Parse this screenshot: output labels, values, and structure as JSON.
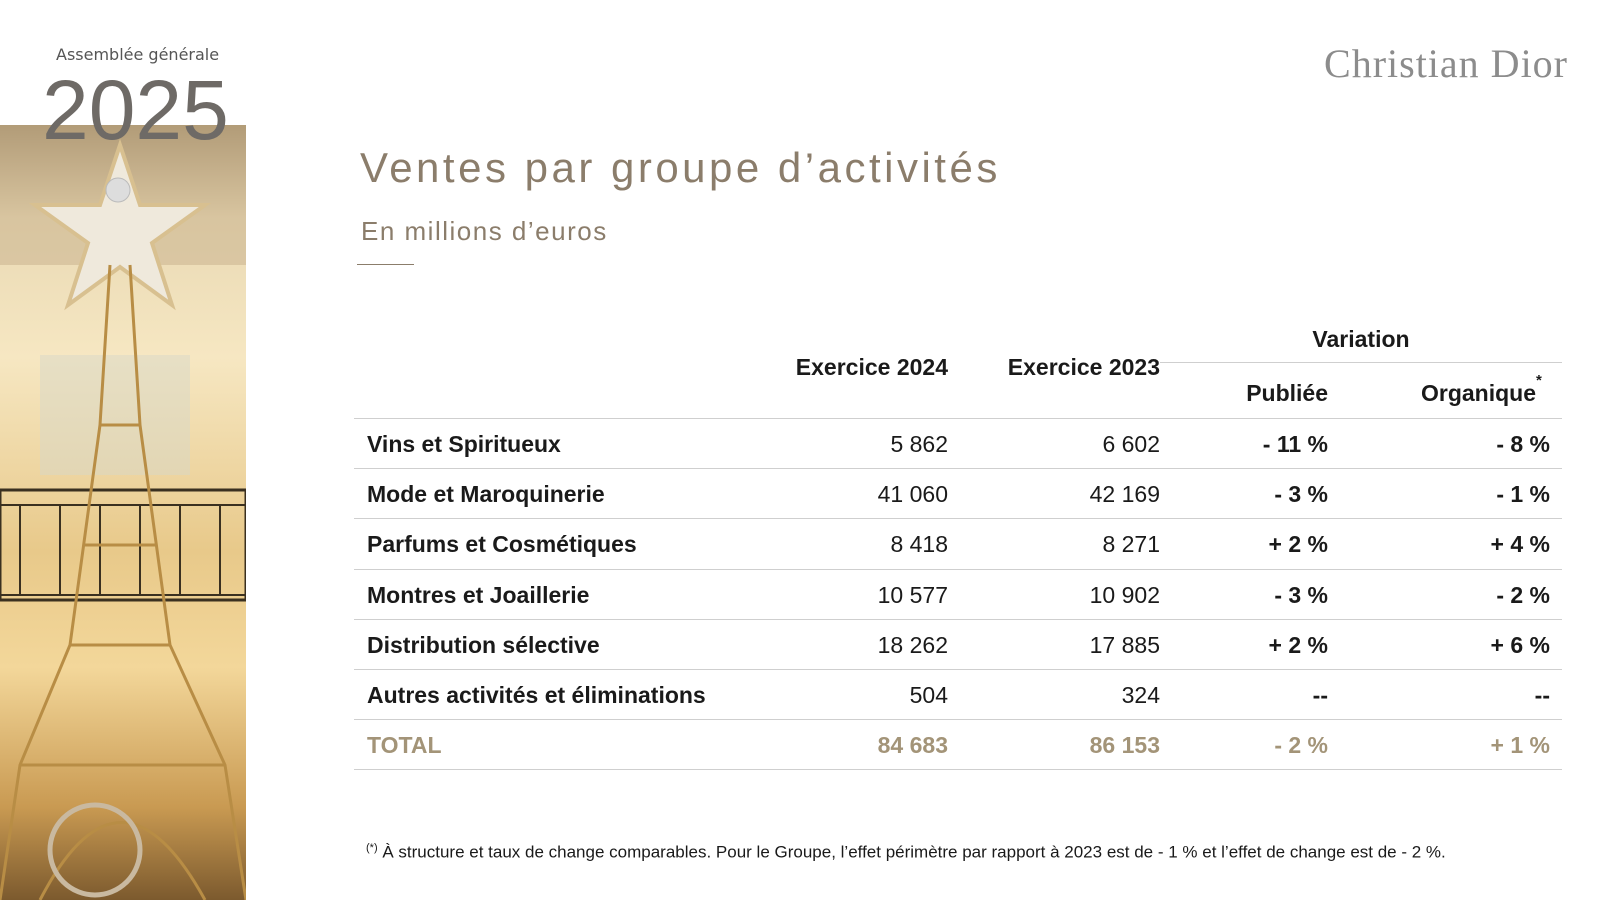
{
  "header": {
    "event": "Assemblée générale",
    "year": "2025",
    "brand": "Christian Dior"
  },
  "title": "Ventes par groupe d’activités",
  "subtitle": "En millions d’euros",
  "table": {
    "columns": [
      "Exercice 2024",
      "Exercice 2023"
    ],
    "group_header": "Variation",
    "sub_columns": [
      "Publiée",
      "Organique"
    ],
    "sub_column_marker": "*",
    "rows": [
      [
        "Vins et Spiritueux",
        "5 862",
        "6 602",
        "- 11 %",
        "- 8 %"
      ],
      [
        "Mode et Maroquinerie",
        "41 060",
        "42 169",
        "- 3 %",
        "- 1 %"
      ],
      [
        "Parfums et Cosmétiques",
        "8 418",
        "8 271",
        "+ 2 %",
        "+ 4 %"
      ],
      [
        "Montres et Joaillerie",
        "10 577",
        "10 902",
        "- 3 %",
        "- 2 %"
      ],
      [
        "Distribution sélective",
        "18 262",
        "17 885",
        "+ 2 %",
        "+ 6 %"
      ],
      [
        "Autres activités et éliminations",
        "504",
        "324",
        "--",
        "--"
      ]
    ],
    "total": [
      "TOTAL",
      "84 683",
      "86 153",
      "- 2 %",
      "+ 1 %"
    ]
  },
  "footnote": {
    "marker": "(*)",
    "text": " À structure et taux de change comparables. Pour le Groupe, l’effet périmètre par rapport à 2023 est de - 1 % et l’effet de change est de - 2 %."
  }
}
